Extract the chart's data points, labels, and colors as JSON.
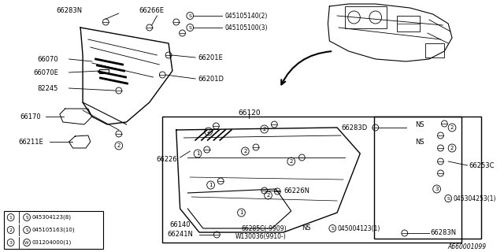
{
  "bg_color": "#ffffff",
  "part_number_id": "A660001099",
  "legend": [
    {
      "num": "1",
      "symbol": "S",
      "part": "045304123(8)"
    },
    {
      "num": "2",
      "symbol": "S",
      "part": "045105163(10)"
    },
    {
      "num": "3",
      "symbol": "W",
      "part": "031204000(1)"
    }
  ]
}
